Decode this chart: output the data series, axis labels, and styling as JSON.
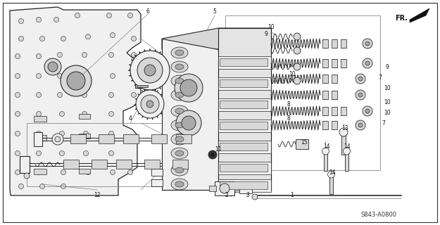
{
  "bg_color": "#ffffff",
  "line_color": "#222222",
  "fill_light": "#f0f0f0",
  "fill_mid": "#d8d8d8",
  "fill_dark": "#aaaaaa",
  "fig_width": 6.25,
  "fig_height": 3.2,
  "dpi": 100,
  "diagram_code": "S843-A0800",
  "fr_label": "FR."
}
